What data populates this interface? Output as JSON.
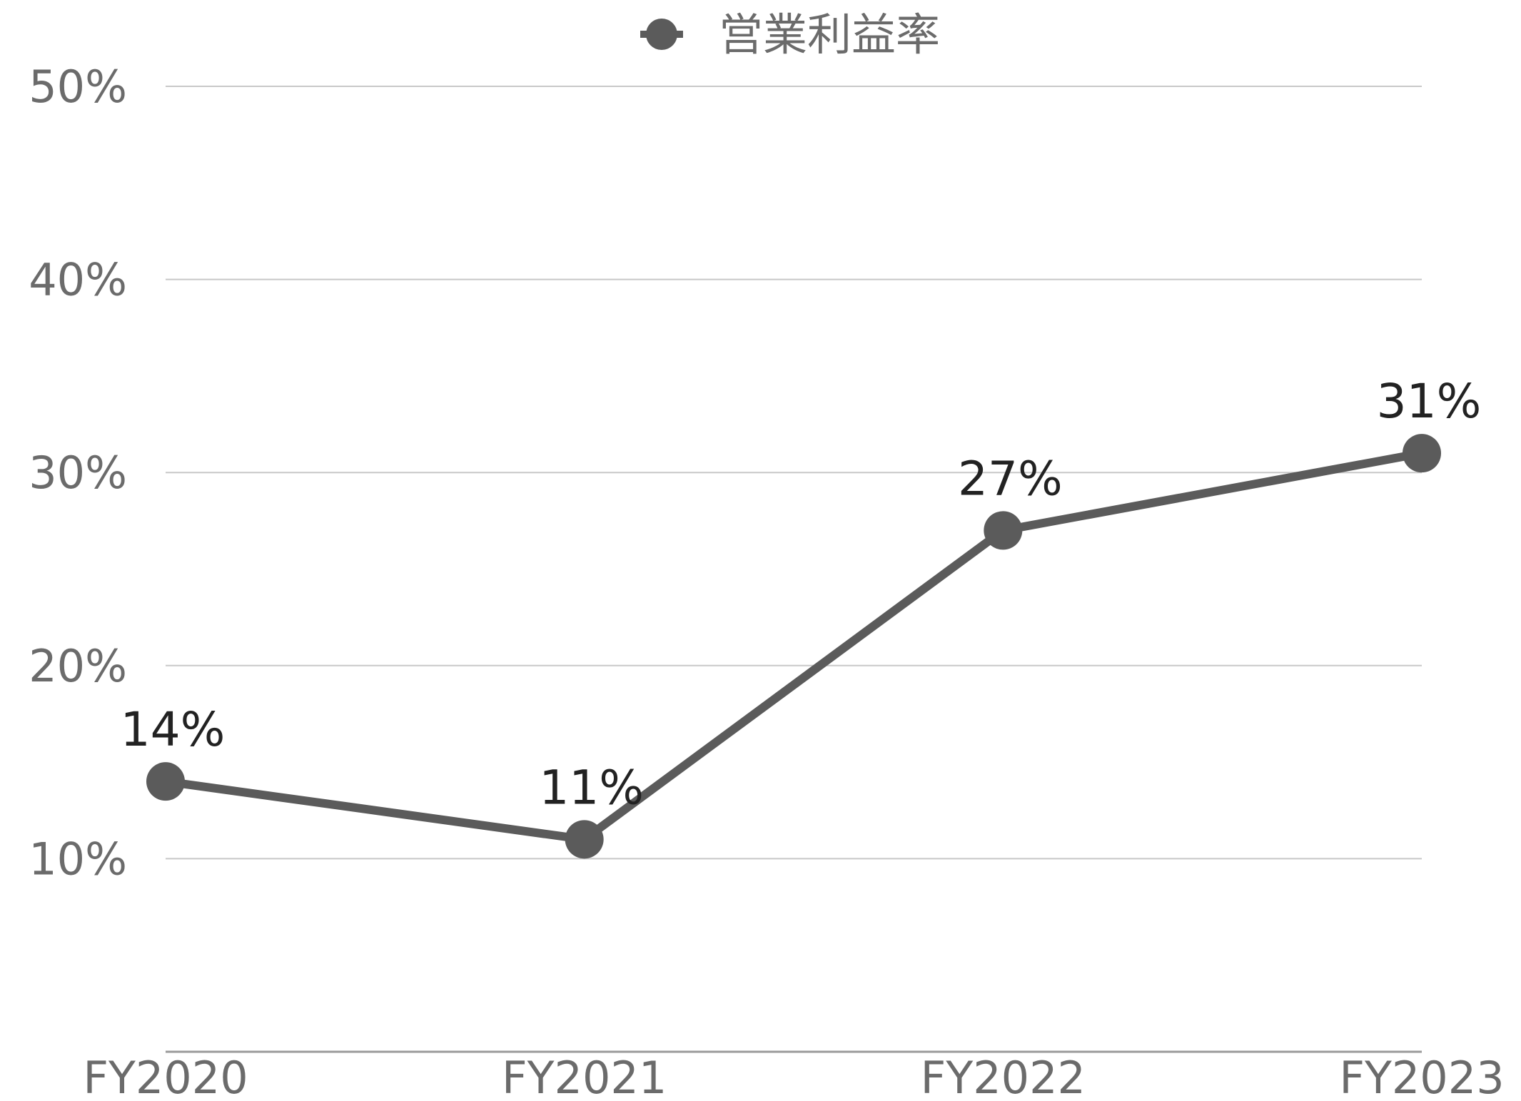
{
  "chart_data": {
    "type": "line",
    "categories": [
      "FY2020",
      "FY2021",
      "FY2022",
      "FY2023"
    ],
    "series": [
      {
        "name": "営業利益率",
        "values": [
          14,
          11,
          27,
          31
        ],
        "labels": [
          "14%",
          "11%",
          "27%",
          "31%"
        ]
      }
    ],
    "y_ticks": [
      {
        "value": 10,
        "label": "10%"
      },
      {
        "value": 20,
        "label": "20%"
      },
      {
        "value": 30,
        "label": "30%"
      },
      {
        "value": 40,
        "label": "40%"
      },
      {
        "value": 50,
        "label": "50%"
      }
    ],
    "ylim": [
      0,
      50
    ],
    "grid": true,
    "legend_position": "top-center"
  },
  "colors": {
    "series": "#5b5b5b",
    "grid": "#c8c8c8",
    "axis": "#9a9a9a",
    "tick_text": "#6b6b6b",
    "data_label": "#222222"
  }
}
